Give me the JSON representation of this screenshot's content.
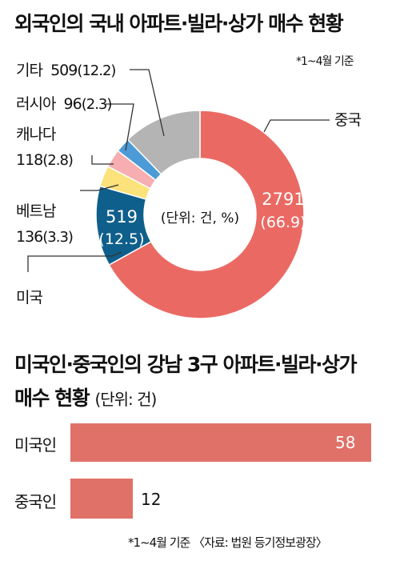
{
  "header": {
    "title": "외국인의 국내 아파트·빌라·상가 매수 현황",
    "note": "*1~4월 기준"
  },
  "center_label": "(단위: 건, %)",
  "section2": {
    "title_line1": "미국인·중국인의 강남 3구 아파트·빌라·상가",
    "title_line2": "매수 현황",
    "unit": "(단위: 건)"
  },
  "footnote": "*1~4월 기준 〈자료: 법원 등기정보광장〉",
  "chart_data": [
    {
      "type": "pie",
      "title": "외국인의 국내 아파트·빌라·상가 매수 현황",
      "unit_note": "(단위: 건, %)",
      "slices": [
        {
          "name": "중국",
          "value": 2791,
          "percent": 66.9,
          "value_label": "2791",
          "percent_label": "(66.9)",
          "color": "#ea6a63"
        },
        {
          "name": "미국",
          "value": 519,
          "percent": 12.5,
          "value_label": "519",
          "percent_label": "(12.5)",
          "color": "#0f5f8c"
        },
        {
          "name": "베트남",
          "value": 136,
          "percent": 3.3,
          "value_label": "136",
          "percent_label": "(3.3)",
          "color": "#fbe27a"
        },
        {
          "name": "캐나다",
          "value": 118,
          "percent": 2.8,
          "value_label": "118",
          "percent_label": "(2.8)",
          "color": "#f6aeb0"
        },
        {
          "name": "러시아",
          "value": 96,
          "percent": 2.3,
          "value_label": "96",
          "percent_label": "(2.3)",
          "color": "#4c9bd6"
        },
        {
          "name": "기타",
          "value": 509,
          "percent": 12.2,
          "value_label": "509",
          "percent_label": "(12.2)",
          "color": "#b4b4b4"
        }
      ]
    },
    {
      "type": "bar",
      "orientation": "horizontal",
      "title": "미국인·중국인의 강남 3구 아파트·빌라·상가 매수 현황",
      "unit_note": "(단위: 건)",
      "categories": [
        "미국인",
        "중국인"
      ],
      "values": [
        58,
        12
      ],
      "value_labels": [
        "58",
        "12"
      ],
      "color": "#e07168"
    }
  ]
}
